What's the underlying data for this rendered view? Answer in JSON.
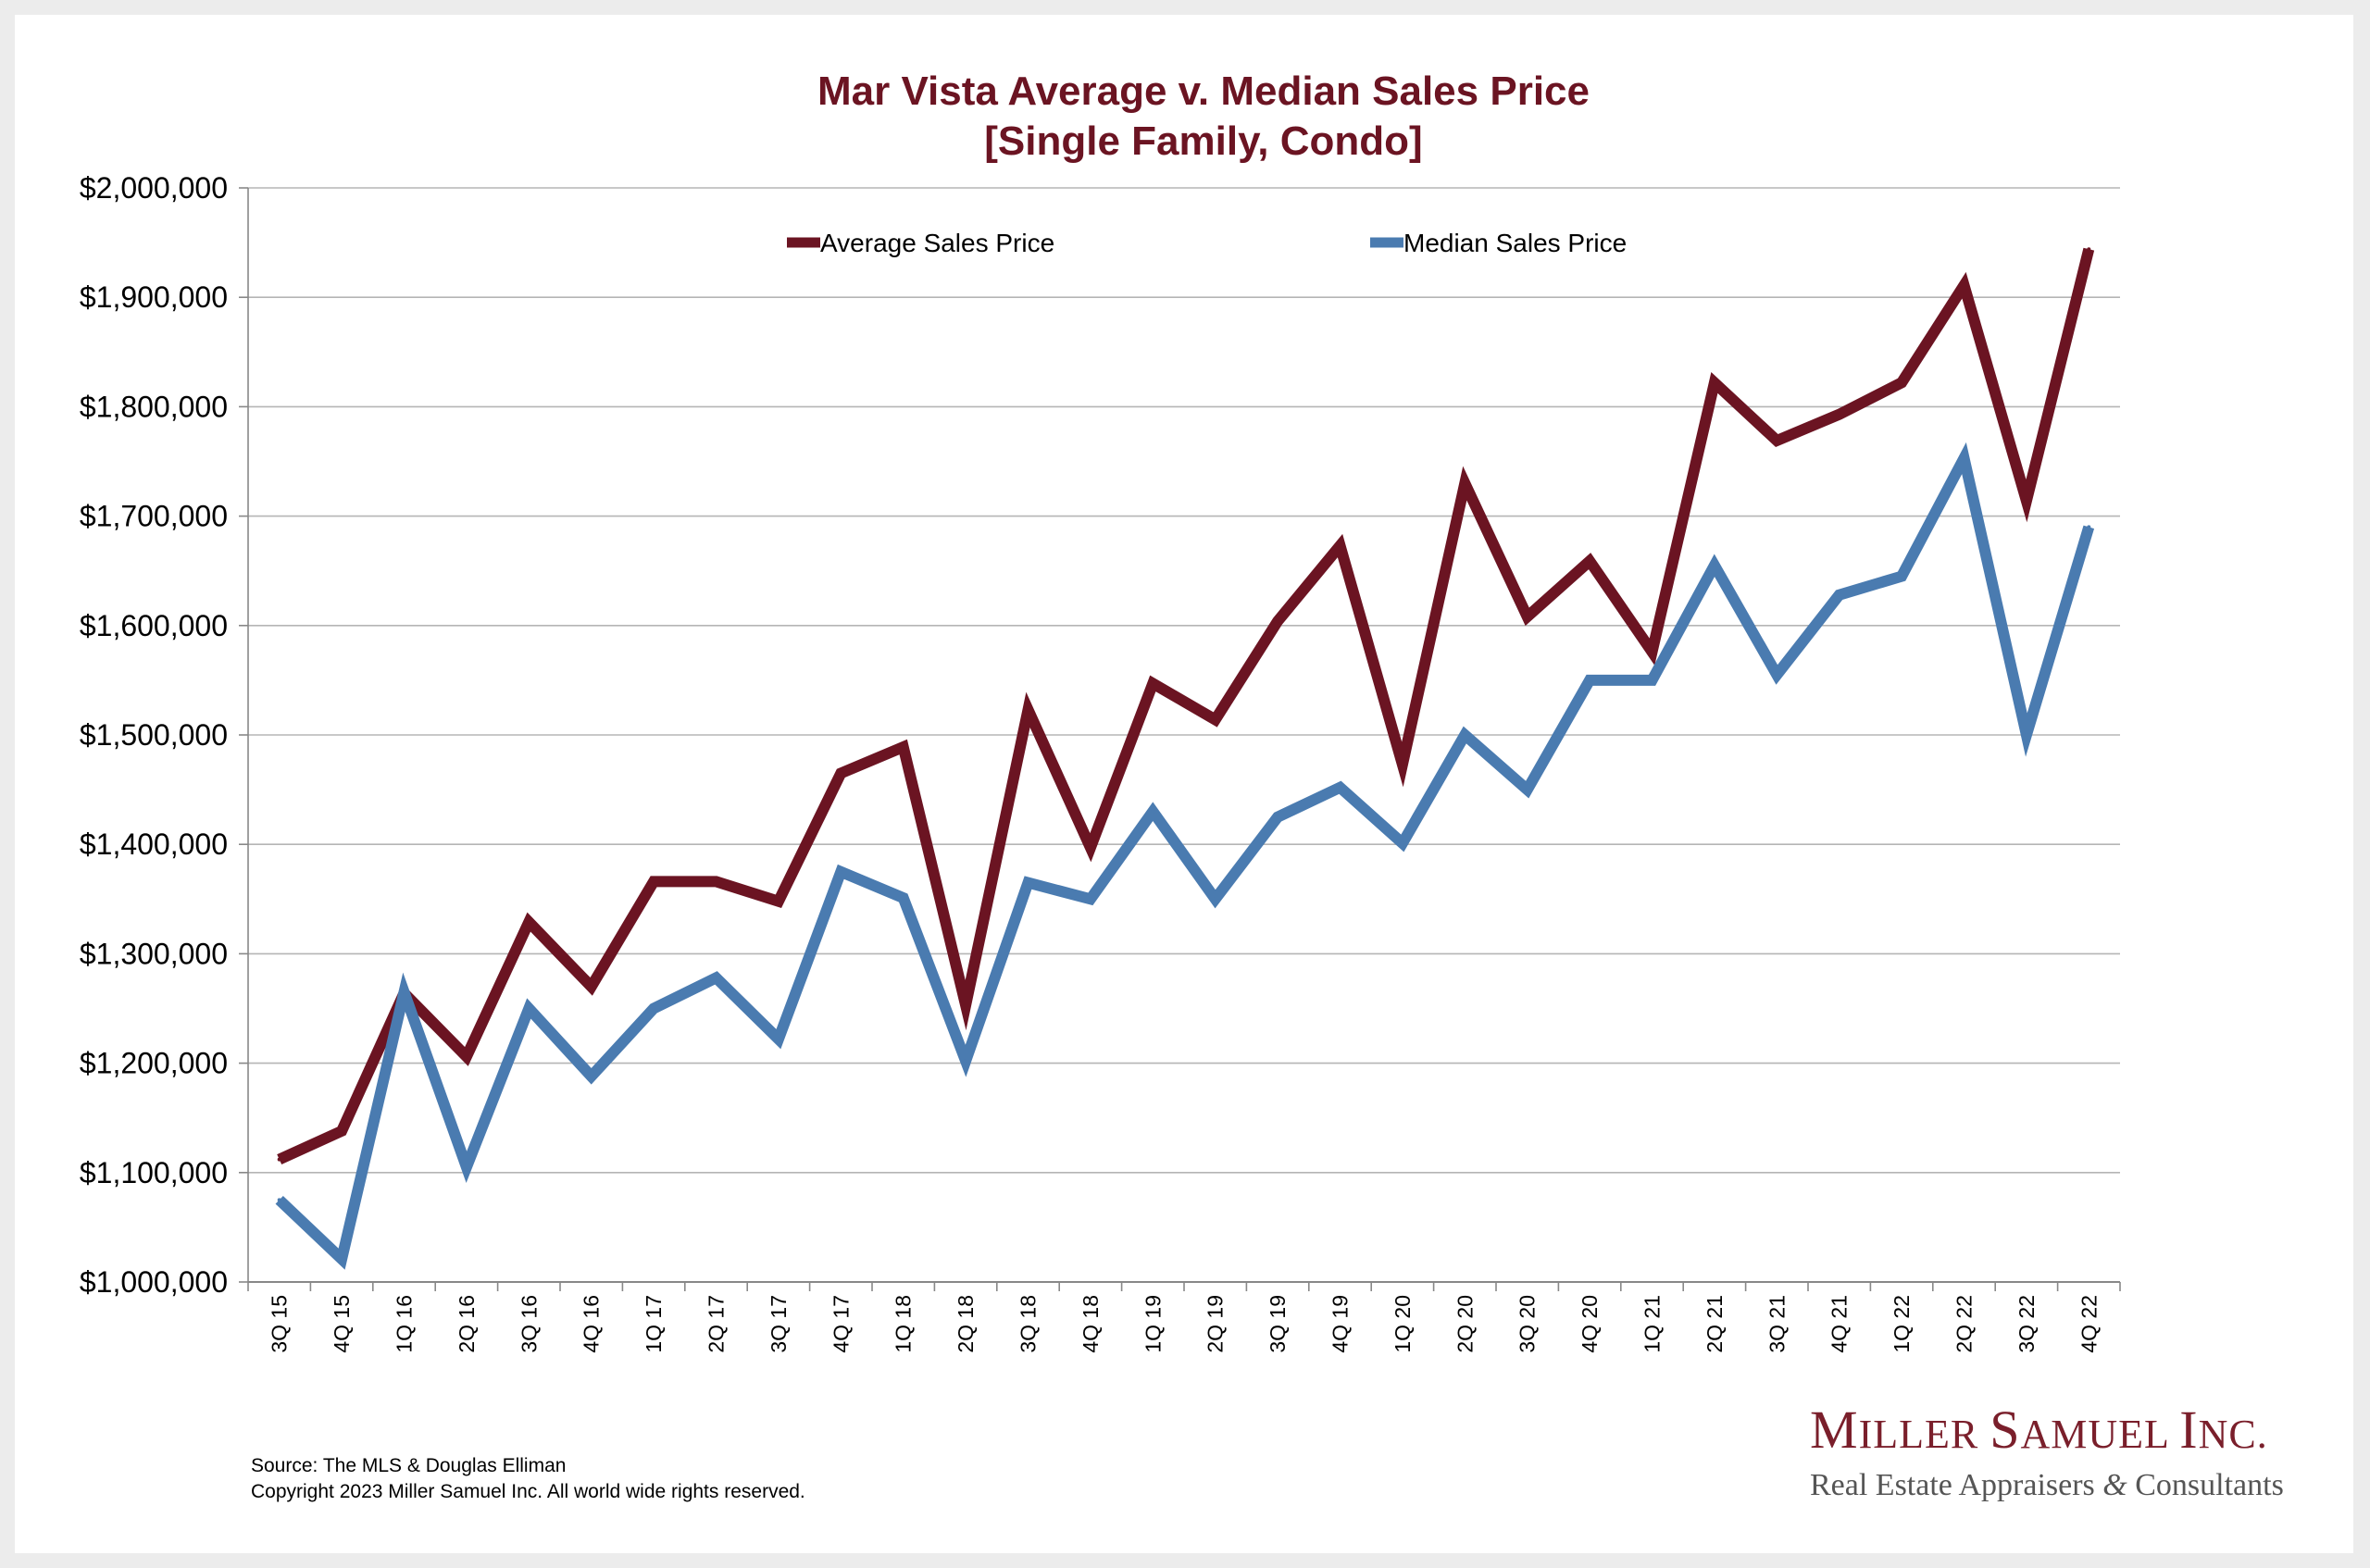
{
  "chart_data": {
    "type": "line",
    "title": "Mar Vista Average v. Median Sales Price",
    "subtitle": "[Single Family, Condo]",
    "xlabel": "",
    "ylabel": "",
    "ylim": [
      1000000,
      2000000
    ],
    "yticks": [
      "$1,000,000",
      "$1,100,000",
      "$1,200,000",
      "$1,300,000",
      "$1,400,000",
      "$1,500,000",
      "$1,600,000",
      "$1,700,000",
      "$1,800,000",
      "$1,900,000",
      "$2,000,000"
    ],
    "grid": true,
    "legend_position": "top",
    "categories": [
      "3Q 15",
      "4Q 15",
      "1Q 16",
      "2Q 16",
      "3Q 16",
      "4Q 16",
      "1Q 17",
      "2Q 17",
      "3Q 17",
      "4Q 17",
      "1Q 18",
      "2Q 18",
      "3Q 18",
      "4Q 18",
      "1Q 19",
      "2Q 19",
      "3Q 19",
      "4Q 19",
      "1Q 20",
      "2Q 20",
      "3Q 20",
      "4Q 20",
      "1Q 21",
      "2Q 21",
      "3Q 21",
      "4Q 21",
      "1Q 22",
      "2Q 22",
      "3Q 22",
      "4Q 22"
    ],
    "series": [
      {
        "name": "Average Sales Price",
        "color": "#6b1422",
        "values": [
          1112000,
          1138000,
          1264000,
          1206000,
          1329000,
          1270000,
          1366000,
          1366000,
          1348000,
          1465000,
          1489000,
          1253000,
          1523000,
          1397000,
          1547000,
          1514000,
          1604000,
          1673000,
          1473000,
          1730000,
          1608000,
          1659000,
          1576000,
          1822000,
          1769000,
          1793000,
          1822000,
          1911000,
          1714000,
          1944000
        ]
      },
      {
        "name": "Median Sales Price",
        "color": "#4a7bb0",
        "values": [
          1075000,
          1021000,
          1265000,
          1105000,
          1250000,
          1188000,
          1250000,
          1278000,
          1222000,
          1375000,
          1351000,
          1202000,
          1365000,
          1350000,
          1430000,
          1350000,
          1425000,
          1452000,
          1401000,
          1500000,
          1450000,
          1550000,
          1550000,
          1655000,
          1555000,
          1628000,
          1645000,
          1753000,
          1500000,
          1690000
        ]
      }
    ]
  },
  "footer": {
    "source_line": "Source: The MLS & Douglas Elliman",
    "copyright_line": "Copyright 2023 Miller Samuel Inc.  All world wide rights reserved."
  },
  "logo": {
    "name_parts": [
      "M",
      "iller ",
      "S",
      "amuel ",
      "I",
      "nc."
    ],
    "tagline_start": "Real Estate Appraisers ",
    "tagline_amp": "&",
    "tagline_end": " Consultants"
  }
}
